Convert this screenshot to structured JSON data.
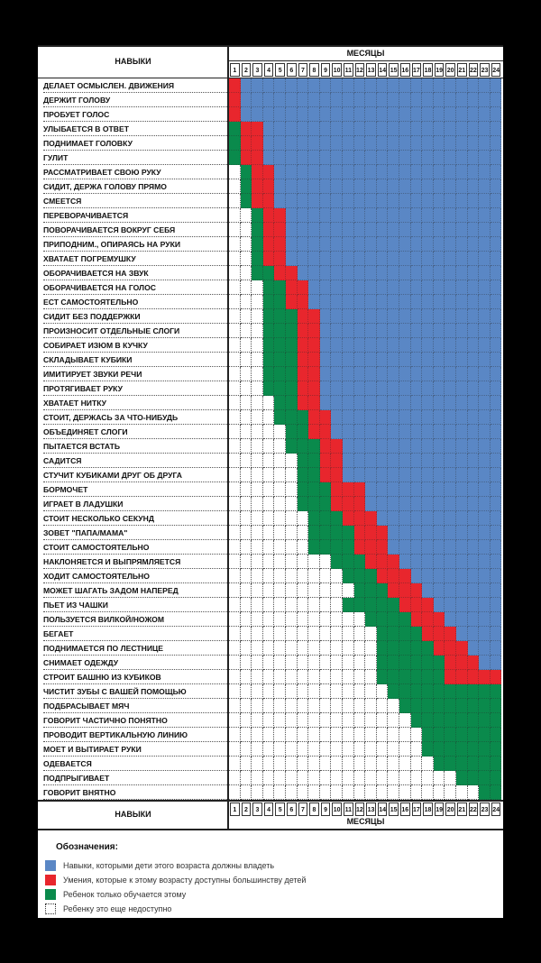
{
  "header": {
    "skills_title": "НАВЫКИ",
    "months_title": "МЕСЯЦЫ"
  },
  "colors": {
    "must": "#5a87c5",
    "most": "#e8262d",
    "learning": "#0a8a4c",
    "none": "#ffffff",
    "grid": "#333333"
  },
  "chart_data": {
    "type": "heatmap",
    "x": [
      1,
      2,
      3,
      4,
      5,
      6,
      7,
      8,
      9,
      10,
      11,
      12,
      13,
      14,
      15,
      16,
      17,
      18,
      19,
      20,
      21,
      22,
      23,
      24
    ],
    "categories": [
      "ДЕЛАЕТ ОСМЫСЛЕН. ДВИЖЕНИЯ",
      "ДЕРЖИТ ГОЛОВУ",
      "ПРОБУЕТ ГОЛОС",
      "УЛЫБАЕТСЯ В ОТВЕТ",
      "ПОДНИМАЕТ ГОЛОВКУ",
      "ГУЛИТ",
      "РАССМАТРИВАЕТ СВОЮ РУКУ",
      "СИДИТ, ДЕРЖА ГОЛОВУ ПРЯМО",
      "СМЕЕТСЯ",
      "ПЕРЕВОРАЧИВАЕТСЯ",
      "ПОВОРАЧИВАЕТСЯ ВОКРУГ СЕБЯ",
      "ПРИПОДНИМ., ОПИРАЯСЬ НА РУКИ",
      "ХВАТАЕТ ПОГРЕМУШКУ",
      "ОБОРАЧИВАЕТСЯ НА ЗВУК",
      "ОБОРАЧИВАЕТСЯ НА ГОЛОС",
      "ЕСТ САМОСТОЯТЕЛЬНО",
      "СИДИТ БЕЗ ПОДДЕРЖКИ",
      "ПРОИЗНОСИТ ОТДЕЛЬНЫЕ СЛОГИ",
      "СОБИРАЕТ ИЗЮМ В КУЧКУ",
      "СКЛАДЫВАЕТ КУБИКИ",
      "ИМИТИРУЕТ ЗВУКИ РЕЧИ",
      "ПРОТЯГИВАЕТ РУКУ",
      "ХВАТАЕТ НИТКУ",
      "СТОИТ, ДЕРЖАСЬ ЗА ЧТО-НИБУДЬ",
      "ОБЪЕДИНЯЕТ СЛОГИ",
      "ПЫТАЕТСЯ ВСТАТЬ",
      "САДИТСЯ",
      "СТУЧИТ КУБИКАМИ ДРУГ ОБ ДРУГА",
      "БОРМОЧЕТ",
      "ИГРАЕТ В ЛАДУШКИ",
      "СТОИТ НЕСКОЛЬКО СЕКУНД",
      "ЗОВЕТ \"ПАПА/МАМА\"",
      "СТОИТ САМОСТОЯТЕЛЬНО",
      "НАКЛОНЯЕТСЯ И ВЫПРЯМЛЯЕТСЯ",
      "ХОДИТ САМОСТОЯТЕЛЬНО",
      "МОЖЕТ ШАГАТЬ ЗАДОМ НАПЕРЕД",
      "ПЬЕТ ИЗ ЧАШКИ",
      "ПОЛЬЗУЕТСЯ ВИЛКОЙ/НОЖОМ",
      "БЕГАЕТ",
      "ПОДНИМАЕТСЯ ПО ЛЕСТНИЦЕ",
      "СНИМАЕТ ОДЕЖДУ",
      "СТРОИТ БАШНЮ ИЗ КУБИКОВ",
      "ЧИСТИТ ЗУБЫ С ВАШЕЙ ПОМОЩЬЮ",
      "ПОДБРАСЫВАЕТ МЯЧ",
      "ГОВОРИТ ЧАСТИЧНО ПОНЯТНО",
      "ПРОВОДИТ ВЕРТИКАЛЬНУЮ ЛИНИЮ",
      "МОЕТ И ВЫТИРАЕТ РУКИ",
      "ОДЕВАЕТСЯ",
      "ПОДПРЫГИВАЕТ",
      "ГОВОРИТ ВНЯТНО"
    ],
    "rows": [
      {
        "g": 1,
        "r": 1,
        "b": 2
      },
      {
        "g": 1,
        "r": 1,
        "b": 2
      },
      {
        "g": 1,
        "r": 1,
        "b": 2
      },
      {
        "g": 1,
        "r": 2,
        "b": 4
      },
      {
        "g": 1,
        "r": 2,
        "b": 4
      },
      {
        "g": 1,
        "r": 2,
        "b": 4
      },
      {
        "g": 2,
        "r": 3,
        "b": 5
      },
      {
        "g": 2,
        "r": 3,
        "b": 5
      },
      {
        "g": 2,
        "r": 3,
        "b": 5
      },
      {
        "g": 3,
        "r": 4,
        "b": 6
      },
      {
        "g": 3,
        "r": 4,
        "b": 6
      },
      {
        "g": 3,
        "r": 4,
        "b": 6
      },
      {
        "g": 3,
        "r": 4,
        "b": 6
      },
      {
        "g": 3,
        "r": 5,
        "b": 7
      },
      {
        "g": 4,
        "r": 6,
        "b": 8
      },
      {
        "g": 4,
        "r": 6,
        "b": 8
      },
      {
        "g": 4,
        "r": 7,
        "b": 9
      },
      {
        "g": 4,
        "r": 7,
        "b": 9
      },
      {
        "g": 4,
        "r": 7,
        "b": 9
      },
      {
        "g": 4,
        "r": 7,
        "b": 9
      },
      {
        "g": 4,
        "r": 7,
        "b": 9
      },
      {
        "g": 4,
        "r": 7,
        "b": 9
      },
      {
        "g": 5,
        "r": 7,
        "b": 9
      },
      {
        "g": 5,
        "r": 8,
        "b": 10
      },
      {
        "g": 6,
        "r": 8,
        "b": 10
      },
      {
        "g": 6,
        "r": 9,
        "b": 11
      },
      {
        "g": 7,
        "r": 9,
        "b": 11
      },
      {
        "g": 7,
        "r": 9,
        "b": 11
      },
      {
        "g": 7,
        "r": 10,
        "b": 13
      },
      {
        "g": 7,
        "r": 10,
        "b": 13
      },
      {
        "g": 8,
        "r": 11,
        "b": 14
      },
      {
        "g": 8,
        "r": 12,
        "b": 15
      },
      {
        "g": 8,
        "r": 12,
        "b": 15
      },
      {
        "g": 10,
        "r": 13,
        "b": 16
      },
      {
        "g": 11,
        "r": 14,
        "b": 17
      },
      {
        "g": 12,
        "r": 15,
        "b": 18
      },
      {
        "g": 11,
        "r": 16,
        "b": 19
      },
      {
        "g": 13,
        "r": 17,
        "b": 20
      },
      {
        "g": 14,
        "r": 18,
        "b": 21
      },
      {
        "g": 14,
        "r": 19,
        "b": 22
      },
      {
        "g": 14,
        "r": 20,
        "b": 23
      },
      {
        "g": 14,
        "r": 20,
        "b": 25
      },
      {
        "g": 15,
        "r": 25,
        "b": 25
      },
      {
        "g": 16,
        "r": 25,
        "b": 25
      },
      {
        "g": 17,
        "r": 25,
        "b": 25
      },
      {
        "g": 18,
        "r": 25,
        "b": 25
      },
      {
        "g": 18,
        "r": 25,
        "b": 25
      },
      {
        "g": 19,
        "r": 25,
        "b": 25
      },
      {
        "g": 21,
        "r": 25,
        "b": 25
      },
      {
        "g": 23,
        "r": 25,
        "b": 25
      }
    ]
  },
  "legend": {
    "title": "Обозначения:",
    "items": [
      {
        "key": "must",
        "text": "Навыки, которыми дети этого возраста должны владеть"
      },
      {
        "key": "most",
        "text": "Умения, которые к этому возрасту доступны большинству детей"
      },
      {
        "key": "learning",
        "text": "Ребенок только обучается этому"
      },
      {
        "key": "none",
        "text": "Ребенку это еще недоступно"
      }
    ]
  }
}
